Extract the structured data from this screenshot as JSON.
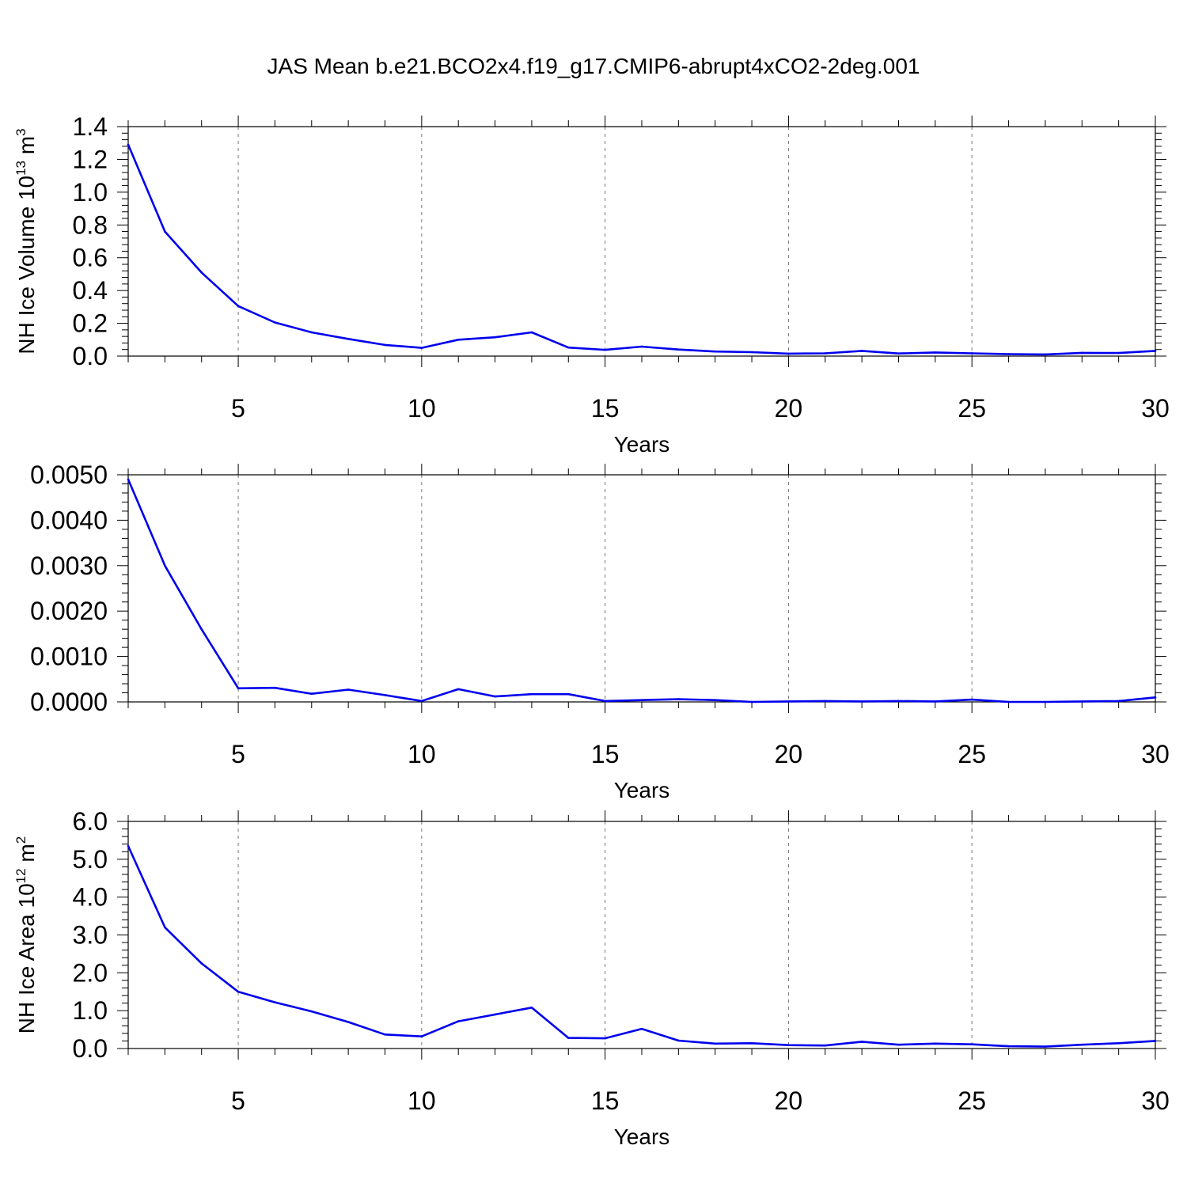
{
  "title": "JAS Mean b.e21.BCO2x4.f19_g17.CMIP6-abrupt4xCO2-2deg.001",
  "line_color": "#0000ee",
  "chart_data": [
    {
      "type": "line",
      "ylabel_main": "NH Ice Volume 10",
      "ylabel_sup": "13",
      "ylabel_unit": " m",
      "ylabel_unit_sup": "3",
      "xlabel": "Years",
      "xlim": [
        2,
        30
      ],
      "ylim": [
        0,
        1.4
      ],
      "yticks": [
        0,
        0.2,
        0.4,
        0.6,
        0.8,
        1.0,
        1.2,
        1.4
      ],
      "ytick_labels": [
        "0.0",
        "0.2",
        "0.4",
        "0.6",
        "0.8",
        "1.0",
        "1.2",
        "1.4"
      ],
      "xticks": [
        5,
        10,
        15,
        20,
        25,
        30
      ],
      "xtick_labels": [
        "5",
        "10",
        "15",
        "20",
        "25",
        "30"
      ],
      "grid_x": true,
      "x": [
        2,
        3,
        4,
        5,
        6,
        7,
        8,
        9,
        10,
        11,
        12,
        13,
        14,
        15,
        16,
        17,
        18,
        19,
        20,
        21,
        22,
        23,
        24,
        25,
        26,
        27,
        28,
        29,
        30
      ],
      "y": [
        1.29,
        0.76,
        0.51,
        0.305,
        0.205,
        0.145,
        0.105,
        0.068,
        0.05,
        0.1,
        0.115,
        0.145,
        0.052,
        0.038,
        0.058,
        0.04,
        0.028,
        0.024,
        0.015,
        0.017,
        0.032,
        0.016,
        0.022,
        0.017,
        0.012,
        0.01,
        0.02,
        0.019,
        0.032
      ]
    },
    {
      "type": "line",
      "ylabel_main": "",
      "xlabel": "Years",
      "xlim": [
        2,
        30
      ],
      "ylim": [
        0,
        0.005
      ],
      "yticks": [
        0,
        0.001,
        0.002,
        0.003,
        0.004,
        0.005
      ],
      "ytick_labels": [
        "0.0000",
        "0.0010",
        "0.0020",
        "0.0030",
        "0.0040",
        "0.0050"
      ],
      "xticks": [
        5,
        10,
        15,
        20,
        25,
        30
      ],
      "xtick_labels": [
        "5",
        "10",
        "15",
        "20",
        "25",
        "30"
      ],
      "grid_x": true,
      "x": [
        2,
        3,
        4,
        5,
        6,
        7,
        8,
        9,
        10,
        11,
        12,
        13,
        14,
        15,
        16,
        17,
        18,
        19,
        20,
        21,
        22,
        23,
        24,
        25,
        26,
        27,
        28,
        29,
        30
      ],
      "y": [
        0.0049,
        0.003,
        0.0016,
        0.0003,
        0.00031,
        0.00018,
        0.00027,
        0.00015,
        2e-05,
        0.00028,
        0.00012,
        0.00017,
        0.00017,
        2e-05,
        4e-05,
        6e-05,
        4e-05,
        0.0,
        1e-05,
        2e-05,
        1e-05,
        2e-05,
        1e-05,
        5e-05,
        0.0,
        0.0,
        1e-05,
        2e-05,
        0.0001
      ]
    },
    {
      "type": "line",
      "ylabel_main": "NH Ice Area 10",
      "ylabel_sup": "12",
      "ylabel_unit": " m",
      "ylabel_unit_sup": "2",
      "xlabel": "Years",
      "xlim": [
        2,
        30
      ],
      "ylim": [
        0,
        6
      ],
      "yticks": [
        0,
        1,
        2,
        3,
        4,
        5,
        6
      ],
      "ytick_labels": [
        "0.0",
        "1.0",
        "2.0",
        "3.0",
        "4.0",
        "5.0",
        "6.0"
      ],
      "xticks": [
        5,
        10,
        15,
        20,
        25,
        30
      ],
      "xtick_labels": [
        "5",
        "10",
        "15",
        "20",
        "25",
        "30"
      ],
      "grid_x": true,
      "x": [
        2,
        3,
        4,
        5,
        6,
        7,
        8,
        9,
        10,
        11,
        12,
        13,
        14,
        15,
        16,
        17,
        18,
        19,
        20,
        21,
        22,
        23,
        24,
        25,
        26,
        27,
        28,
        29,
        30
      ],
      "y": [
        5.35,
        3.2,
        2.25,
        1.5,
        1.22,
        0.98,
        0.7,
        0.37,
        0.32,
        0.72,
        0.9,
        1.08,
        0.28,
        0.27,
        0.52,
        0.21,
        0.13,
        0.14,
        0.09,
        0.08,
        0.18,
        0.1,
        0.13,
        0.11,
        0.06,
        0.05,
        0.1,
        0.14,
        0.2
      ]
    }
  ]
}
